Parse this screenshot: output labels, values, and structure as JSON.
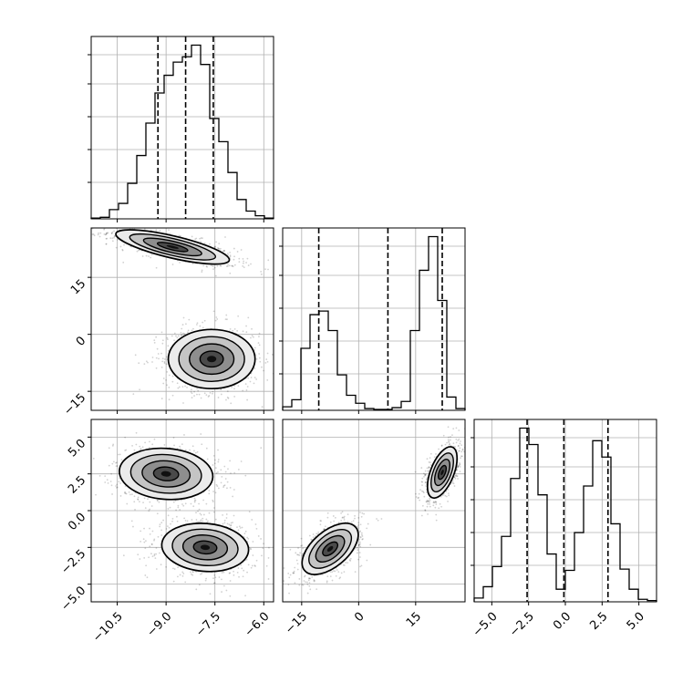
{
  "chart_data": {
    "type": "corner",
    "parameters": [
      {
        "index": 0,
        "range": [
          -11.3,
          -5.7
        ],
        "ticks": [
          -10.5,
          -9.0,
          -7.5,
          -6.0
        ],
        "tick_labels": [
          "−10.5",
          "−9.0",
          "−7.5",
          "−6.0"
        ],
        "quantiles": [
          -9.25,
          -8.4,
          -7.55
        ]
      },
      {
        "index": 1,
        "range": [
          -20.0,
          28.0
        ],
        "ticks": [
          -15,
          0,
          15
        ],
        "tick_labels": [
          "−15",
          "0",
          "15"
        ],
        "quantiles": [
          -10.5,
          7.7,
          22.0
        ]
      },
      {
        "index": 2,
        "range": [
          -6.2,
          6.2
        ],
        "ticks": [
          -5.0,
          -2.5,
          0.0,
          2.5,
          5.0
        ],
        "tick_labels": [
          "−5.0",
          "−2.5",
          "0.0",
          "2.5",
          "5.0"
        ],
        "quantiles": [
          -2.6,
          -0.1,
          2.9
        ]
      }
    ],
    "histograms": [
      {
        "parameter": 0,
        "bin_edges": [
          -11.3,
          -11.02,
          -10.74,
          -10.46,
          -10.18,
          -9.9,
          -9.62,
          -9.34,
          -9.06,
          -8.78,
          -8.5,
          -8.22,
          -7.94,
          -7.66,
          -7.38,
          -7.1,
          -6.82,
          -6.54,
          -6.26,
          -5.98,
          -5.7
        ],
        "counts": [
          1,
          2,
          12,
          20,
          46,
          82,
          124,
          163,
          186,
          203,
          210,
          225,
          200,
          130,
          100,
          60,
          25,
          10,
          4,
          1
        ]
      },
      {
        "parameter": 1,
        "bin_edges": [
          -20.0,
          -17.6,
          -15.2,
          -12.8,
          -10.4,
          -8.0,
          -5.6,
          -3.2,
          -0.8,
          1.6,
          4.0,
          6.4,
          8.8,
          11.2,
          13.6,
          16.0,
          18.4,
          20.8,
          23.2,
          25.6,
          28.0
        ],
        "counts": [
          4,
          12,
          70,
          108,
          112,
          90,
          40,
          17,
          8,
          2,
          1,
          1,
          3,
          10,
          90,
          158,
          196,
          124,
          15,
          2
        ]
      },
      {
        "parameter": 2,
        "bin_edges": [
          -6.2,
          -5.58,
          -4.96,
          -4.34,
          -3.72,
          -3.1,
          -2.48,
          -1.86,
          -1.24,
          -0.62,
          0.0,
          0.62,
          1.24,
          1.86,
          2.48,
          3.1,
          3.72,
          4.34,
          4.96,
          5.58,
          6.2
        ],
        "counts": [
          3,
          12,
          28,
          52,
          98,
          138,
          125,
          85,
          38,
          10,
          25,
          55,
          92,
          128,
          115,
          62,
          26,
          10,
          2,
          1
        ]
      }
    ],
    "scatter_blobs": [
      {
        "pair": [
          0,
          1
        ],
        "modes": [
          {
            "center": [
              -8.8,
              23.0
            ],
            "sd": [
              0.85,
              2.2
            ],
            "corr": -0.75
          },
          {
            "center": [
              -7.6,
              -6.5
            ],
            "sd": [
              0.65,
              3.8
            ],
            "corr": 0.0
          }
        ]
      },
      {
        "pair": [
          0,
          2
        ],
        "modes": [
          {
            "center": [
              -9.0,
              2.5
            ],
            "sd": [
              0.7,
              0.85
            ],
            "corr": -0.1
          },
          {
            "center": [
              -7.8,
              -2.5
            ],
            "sd": [
              0.65,
              0.8
            ],
            "corr": -0.1
          }
        ]
      },
      {
        "pair": [
          1,
          2
        ],
        "modes": [
          {
            "center": [
              -7.5,
              -2.6
            ],
            "sd": [
              3.6,
              0.85
            ],
            "corr": 0.55
          },
          {
            "center": [
              22.0,
              2.6
            ],
            "sd": [
              1.9,
              0.85
            ],
            "corr": 0.55
          }
        ]
      }
    ],
    "grid": true
  }
}
